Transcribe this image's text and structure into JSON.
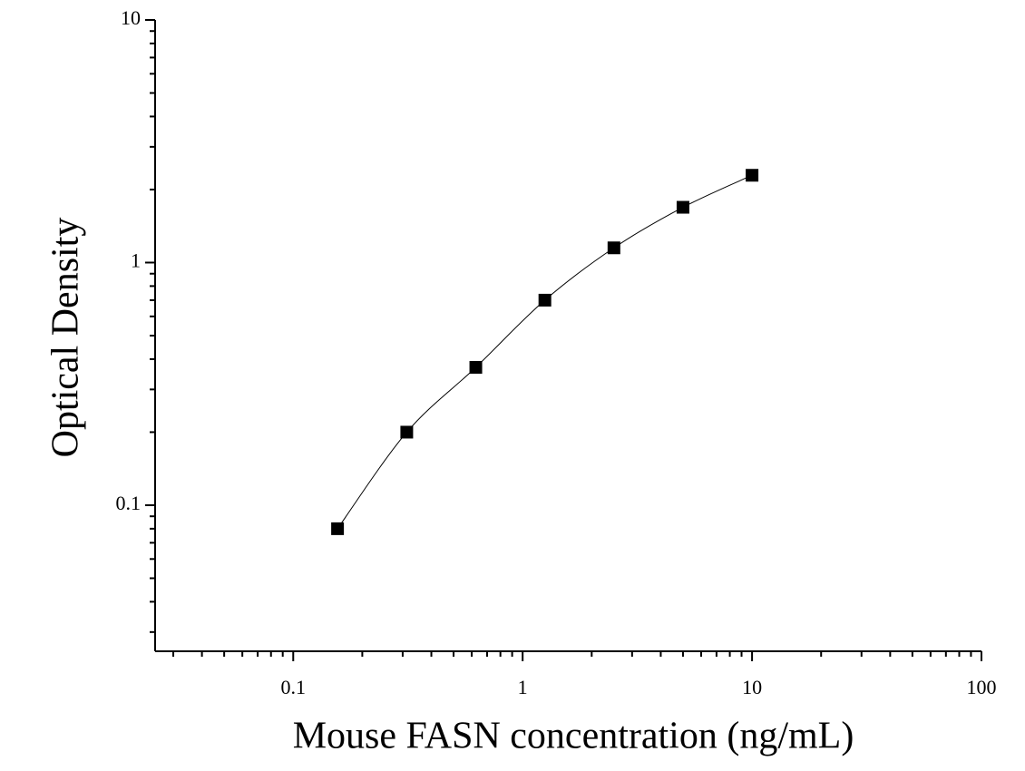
{
  "chart_data": {
    "type": "scatter",
    "x_label": "Mouse FASN concentration (ng/mL)",
    "y_label": "Optical Density",
    "x": [
      0.156,
      0.3125,
      0.625,
      1.25,
      2.5,
      5,
      10
    ],
    "series": [
      {
        "color": "#000000",
        "values": [
          0.08,
          0.2,
          0.37,
          0.7,
          1.15,
          1.69,
          2.29
        ]
      }
    ],
    "xlim": [
      0.025,
      100
    ],
    "ylim": [
      0.025,
      10
    ],
    "xticks": [
      0.1,
      1,
      10,
      100
    ],
    "yticks": [
      0.1,
      1,
      10
    ],
    "x_log": true,
    "y_log": true,
    "fit_line": true
  }
}
